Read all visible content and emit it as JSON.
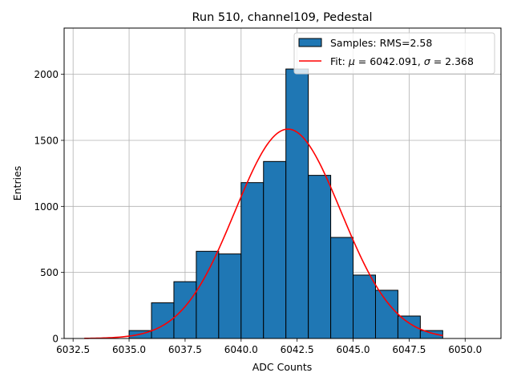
{
  "chart_data": {
    "type": "bar",
    "title": "Run 510, channel109, Pedestal",
    "xlabel": "ADC Counts",
    "ylabel": "Entries",
    "xlim": [
      6032.1,
      6051.6
    ],
    "ylim": [
      0,
      2350
    ],
    "xticks": [
      6032.5,
      6035.0,
      6037.5,
      6040.0,
      6042.5,
      6045.0,
      6047.5,
      6050.0
    ],
    "xtick_labels": [
      "6032.5",
      "6035.0",
      "6037.5",
      "6040.0",
      "6042.5",
      "6045.0",
      "6047.5",
      "6050.0"
    ],
    "yticks": [
      0,
      500,
      1000,
      1500,
      2000
    ],
    "ytick_labels": [
      "0",
      "500",
      "1000",
      "1500",
      "2000"
    ],
    "grid": true,
    "legend_position": "top-right",
    "histogram": {
      "name": "Samples: RMS=2.58",
      "color": "#1f77b4",
      "edge_color": "#000000",
      "bins": [
        {
          "left": 6035,
          "right": 6036,
          "count": 60
        },
        {
          "left": 6036,
          "right": 6037,
          "count": 270
        },
        {
          "left": 6037,
          "right": 6038,
          "count": 430
        },
        {
          "left": 6038,
          "right": 6039,
          "count": 660
        },
        {
          "left": 6039,
          "right": 6040,
          "count": 640
        },
        {
          "left": 6040,
          "right": 6041,
          "count": 1180
        },
        {
          "left": 6041,
          "right": 6042,
          "count": 1340
        },
        {
          "left": 6042,
          "right": 6043,
          "count": 2040
        },
        {
          "left": 6043,
          "right": 6044,
          "count": 1235
        },
        {
          "left": 6044,
          "right": 6045,
          "count": 765
        },
        {
          "left": 6045,
          "right": 6046,
          "count": 480
        },
        {
          "left": 6046,
          "right": 6047,
          "count": 365
        },
        {
          "left": 6047,
          "right": 6048,
          "count": 170
        },
        {
          "left": 6048,
          "right": 6049,
          "count": 60
        }
      ]
    },
    "fit": {
      "name": "Fit: μ = 6042.091, σ = 2.368",
      "label_prefix": "Fit: ",
      "label_mu_symbol": "μ",
      "label_mu_value": " = 6042.091, ",
      "label_sigma_symbol": "σ",
      "label_sigma_value": " = 2.368",
      "color": "#ff0000",
      "mu": 6042.091,
      "sigma": 2.368,
      "amplitude": 1585,
      "x_range": [
        6033,
        6049
      ]
    }
  }
}
